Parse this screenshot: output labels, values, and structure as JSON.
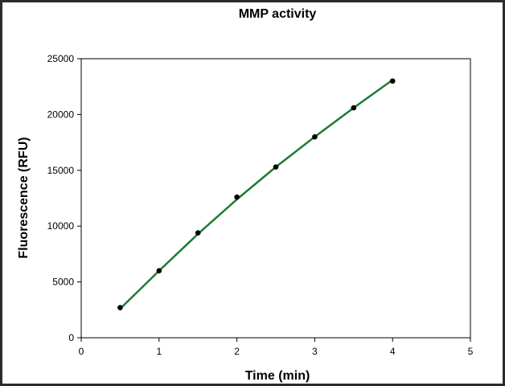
{
  "chart_data": {
    "type": "line",
    "title": "MMP activity",
    "xlabel": "Time (min)",
    "ylabel": "Fluorescence (RFU)",
    "xlim": [
      0,
      5
    ],
    "ylim": [
      0,
      25000
    ],
    "xticks": [
      0,
      1,
      2,
      3,
      4,
      5
    ],
    "yticks": [
      0,
      5000,
      10000,
      15000,
      20000,
      25000
    ],
    "grid": false,
    "series": [
      {
        "kind": "scatter",
        "color": "#000000",
        "marker": "circle",
        "x": [
          0.5,
          1.0,
          1.5,
          2.0,
          2.5,
          3.0,
          3.5,
          4.0
        ],
        "y": [
          2700,
          6000,
          9400,
          12600,
          15300,
          18000,
          20600,
          23000
        ]
      },
      {
        "kind": "fit-line",
        "color": "#1e7b34",
        "x": [
          0.5,
          1.0,
          1.5,
          2.0,
          2.5,
          3.0,
          3.5,
          4.0
        ],
        "y": [
          2600,
          6000,
          9300,
          12400,
          15300,
          18000,
          20600,
          23100
        ]
      }
    ]
  }
}
